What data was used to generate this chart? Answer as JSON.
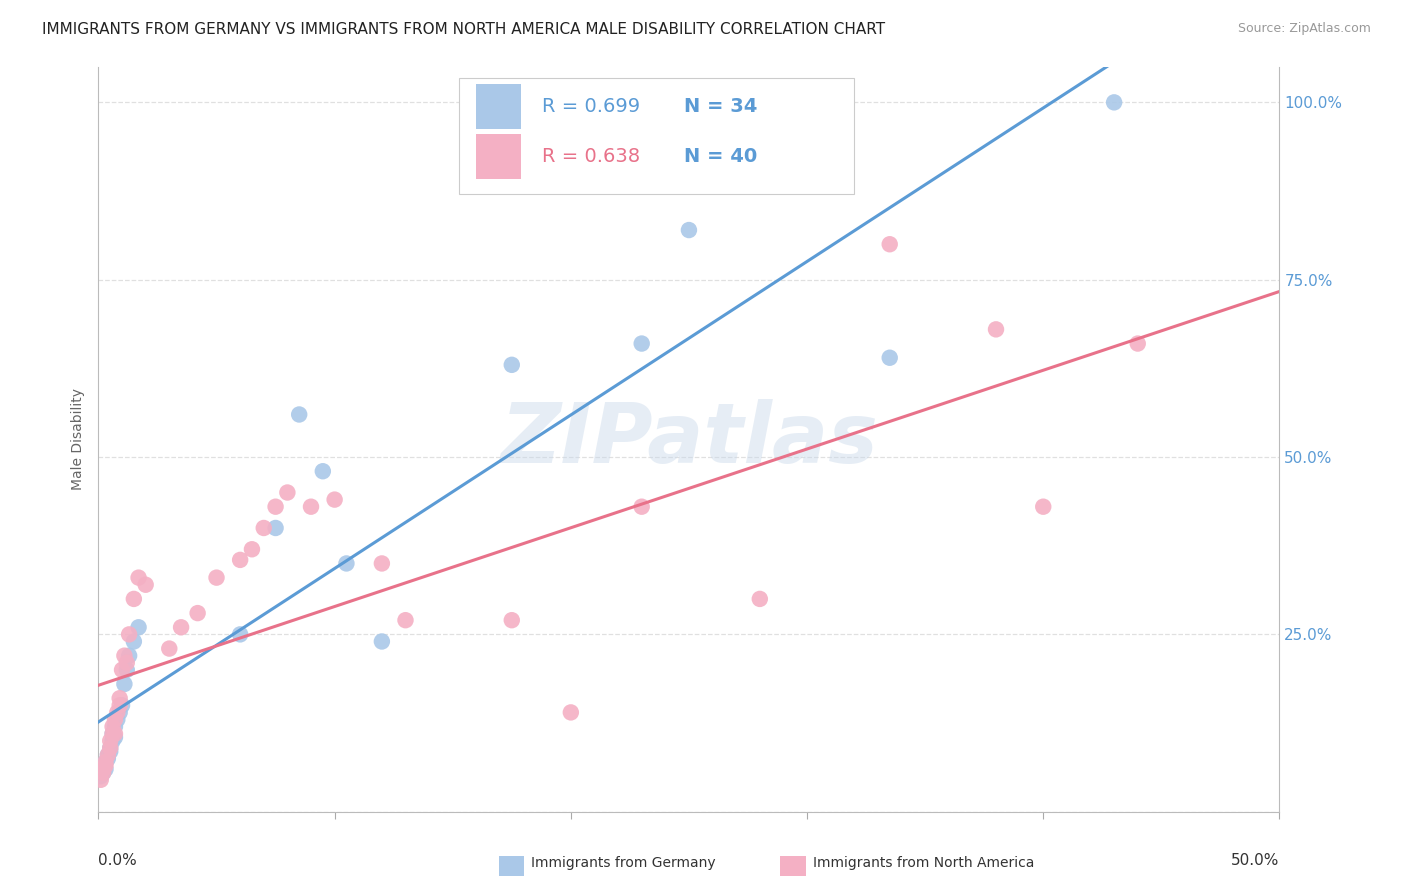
{
  "title": "IMMIGRANTS FROM GERMANY VS IMMIGRANTS FROM NORTH AMERICA MALE DISABILITY CORRELATION CHART",
  "source": "Source: ZipAtlas.com",
  "ylabel": "Male Disability",
  "watermark": "ZIPatlas",
  "blue_x": [
    0.001,
    0.002,
    0.002,
    0.003,
    0.003,
    0.004,
    0.004,
    0.005,
    0.005,
    0.006,
    0.006,
    0.007,
    0.007,
    0.008,
    0.009,
    0.01,
    0.011,
    0.012,
    0.013,
    0.015,
    0.017,
    0.06,
    0.075,
    0.085,
    0.095,
    0.105,
    0.12,
    0.175,
    0.23,
    0.25,
    0.335,
    0.43
  ],
  "blue_y": [
    0.05,
    0.055,
    0.065,
    0.06,
    0.07,
    0.08,
    0.075,
    0.09,
    0.085,
    0.1,
    0.11,
    0.12,
    0.105,
    0.13,
    0.14,
    0.15,
    0.18,
    0.2,
    0.22,
    0.24,
    0.26,
    0.25,
    0.4,
    0.56,
    0.48,
    0.35,
    0.24,
    0.63,
    0.66,
    0.82,
    0.64,
    1.0
  ],
  "pink_x": [
    0.001,
    0.002,
    0.002,
    0.003,
    0.003,
    0.004,
    0.005,
    0.005,
    0.006,
    0.006,
    0.007,
    0.007,
    0.008,
    0.009,
    0.009,
    0.01,
    0.011,
    0.012,
    0.013,
    0.015,
    0.017,
    0.02,
    0.03,
    0.035,
    0.042,
    0.05,
    0.06,
    0.065,
    0.07,
    0.075,
    0.08,
    0.09,
    0.1,
    0.12,
    0.13,
    0.175,
    0.2,
    0.23,
    0.28,
    0.335,
    0.38,
    0.4,
    0.44
  ],
  "pink_y": [
    0.045,
    0.055,
    0.06,
    0.065,
    0.07,
    0.08,
    0.09,
    0.1,
    0.11,
    0.12,
    0.11,
    0.13,
    0.14,
    0.16,
    0.15,
    0.2,
    0.22,
    0.21,
    0.25,
    0.3,
    0.33,
    0.32,
    0.23,
    0.26,
    0.28,
    0.33,
    0.355,
    0.37,
    0.4,
    0.43,
    0.45,
    0.43,
    0.44,
    0.35,
    0.27,
    0.27,
    0.14,
    0.43,
    0.3,
    0.8,
    0.68,
    0.43,
    0.66
  ],
  "xlim": [
    0.0,
    0.5
  ],
  "ylim": [
    0.0,
    1.05
  ],
  "yticks": [
    0.0,
    0.25,
    0.5,
    0.75,
    1.0
  ],
  "ytick_labels": [
    "",
    "25.0%",
    "50.0%",
    "75.0%",
    "100.0%"
  ],
  "xtick_positions": [
    0.0,
    0.1,
    0.2,
    0.3,
    0.4,
    0.5
  ],
  "blue_line_color": "#5b9bd5",
  "pink_line_color": "#e8728a",
  "scatter_blue": "#aac8e8",
  "scatter_pink": "#f4b0c4",
  "background": "#ffffff",
  "grid_color": "#e0e0e0",
  "title_fontsize": 11,
  "axis_label_fontsize": 10,
  "tick_fontsize": 10,
  "legend_fontsize": 14,
  "legend_R_color_blue": "#5b9bd5",
  "legend_R_color_pink": "#e8728a",
  "legend_N_color": "#5b9bd5",
  "legend_text_color": "#333333"
}
